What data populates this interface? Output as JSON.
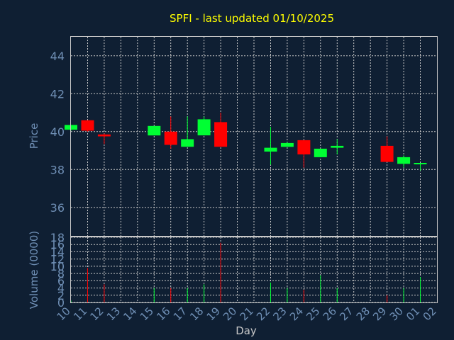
{
  "chart_data": {
    "type": "candlestick",
    "title": "SPFI - last updated 01/10/2025",
    "xlabel": "Day",
    "price_panel": {
      "ylabel": "Price",
      "ylim": [
        34.5,
        45
      ],
      "yticks": [
        36,
        38,
        40,
        42,
        44
      ],
      "grid": true
    },
    "volume_panel": {
      "ylabel": "Volume (0000)",
      "ylim": [
        0,
        18
      ],
      "yticks": [
        0,
        2,
        4,
        6,
        8,
        10,
        12,
        14,
        16,
        18
      ],
      "grid": true
    },
    "categories": [
      "10",
      "11",
      "12",
      "13",
      "14",
      "15",
      "16",
      "17",
      "18",
      "19",
      "20",
      "21",
      "22",
      "23",
      "24",
      "25",
      "26",
      "27",
      "28",
      "29",
      "30",
      "01",
      "02"
    ],
    "candles": [
      {
        "day": "10",
        "open": 40.1,
        "high": 40.35,
        "low": 40.05,
        "close": 40.35,
        "volume": 0.5
      },
      {
        "day": "11",
        "open": 40.6,
        "high": 40.6,
        "low": 40.0,
        "close": 40.05,
        "volume": 9.5
      },
      {
        "day": "12",
        "open": 39.85,
        "high": 39.9,
        "low": 39.35,
        "close": 39.75,
        "volume": 5.0
      },
      {
        "day": "15",
        "open": 39.8,
        "high": 40.3,
        "low": 39.8,
        "close": 40.3,
        "volume": 4.0
      },
      {
        "day": "16",
        "open": 40.0,
        "high": 40.8,
        "low": 39.1,
        "close": 39.3,
        "volume": 4.0
      },
      {
        "day": "17",
        "open": 39.2,
        "high": 40.8,
        "low": 39.2,
        "close": 39.6,
        "volume": 4.0
      },
      {
        "day": "18",
        "open": 39.8,
        "high": 40.8,
        "low": 39.8,
        "close": 40.65,
        "volume": 5.0
      },
      {
        "day": "19",
        "open": 40.5,
        "high": 41.0,
        "low": 39.2,
        "close": 39.2,
        "volume": 16.5
      },
      {
        "day": "22",
        "open": 38.95,
        "high": 40.25,
        "low": 38.25,
        "close": 39.15,
        "volume": 5.5
      },
      {
        "day": "23",
        "open": 39.2,
        "high": 39.45,
        "low": 39.2,
        "close": 39.4,
        "volume": 4.0
      },
      {
        "day": "24",
        "open": 39.55,
        "high": 39.55,
        "low": 38.1,
        "close": 38.8,
        "volume": 3.5
      },
      {
        "day": "25",
        "open": 38.65,
        "high": 39.1,
        "low": 38.65,
        "close": 39.1,
        "volume": 7.5
      },
      {
        "day": "26",
        "open": 39.15,
        "high": 39.6,
        "low": 38.8,
        "close": 39.25,
        "volume": 4.0
      },
      {
        "day": "29",
        "open": 39.25,
        "high": 39.75,
        "low": 38.4,
        "close": 38.4,
        "volume": 2.0
      },
      {
        "day": "30",
        "open": 38.3,
        "high": 38.75,
        "low": 38.1,
        "close": 38.65,
        "volume": 4.0
      },
      {
        "day": "01",
        "open": 38.3,
        "high": 38.35,
        "low": 37.95,
        "close": 38.35,
        "volume": 7.0
      }
    ],
    "colors": {
      "up": "#00ff33",
      "down": "#ff0000",
      "title": "#ffff00",
      "axis_text": "#6f8fb5",
      "grid": "#c8c8c8",
      "frame": "#c8c8c8",
      "background": "#0f1f33"
    }
  }
}
